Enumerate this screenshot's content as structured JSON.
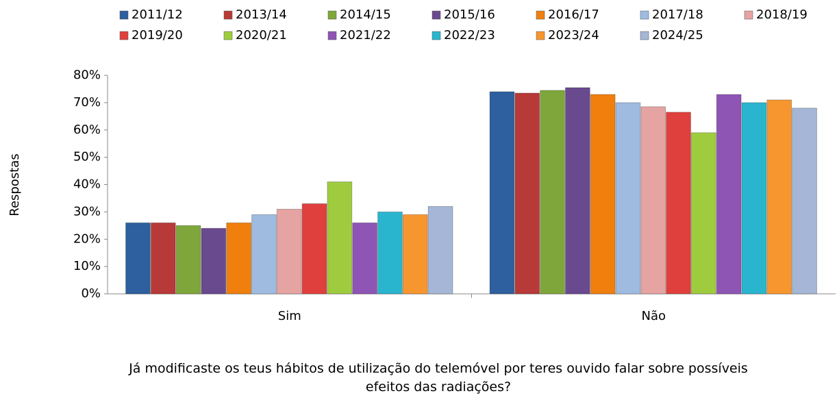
{
  "chart_data": {
    "type": "bar",
    "title": "Já modificaste os teus hábitos de utilização do telemóvel por teres ouvido falar sobre possíveis efeitos das radiações?",
    "y_label": "Respostas",
    "categories": [
      "Sim",
      "Não"
    ],
    "series": [
      {
        "name": "2011/12",
        "color": "#2e5f9e",
        "values": [
          26,
          74
        ]
      },
      {
        "name": "2013/14",
        "color": "#b83a38",
        "values": [
          26,
          73.5
        ]
      },
      {
        "name": "2014/15",
        "color": "#7fa63a",
        "values": [
          25,
          74.5
        ]
      },
      {
        "name": "2015/16",
        "color": "#6a4a8f",
        "values": [
          24,
          75.5
        ]
      },
      {
        "name": "2016/17",
        "color": "#f07f0e",
        "values": [
          26,
          73
        ]
      },
      {
        "name": "2017/18",
        "color": "#9fbbe0",
        "values": [
          29,
          70
        ]
      },
      {
        "name": "2018/19",
        "color": "#e5a3a2",
        "values": [
          31,
          68.5
        ]
      },
      {
        "name": "2019/20",
        "color": "#e0403d",
        "values": [
          33,
          66.5
        ]
      },
      {
        "name": "2020/21",
        "color": "#9fcc3f",
        "values": [
          41,
          59
        ]
      },
      {
        "name": "2021/22",
        "color": "#8e55b5",
        "values": [
          26,
          73
        ]
      },
      {
        "name": "2022/23",
        "color": "#2ab5cf",
        "values": [
          30,
          70
        ]
      },
      {
        "name": "2023/24",
        "color": "#f7962f",
        "values": [
          29,
          71
        ]
      },
      {
        "name": "2024/25",
        "color": "#a5b6d6",
        "values": [
          32,
          68
        ]
      }
    ],
    "ylim": [
      0,
      80
    ],
    "yticks": [
      {
        "value": 0,
        "label": "0%"
      },
      {
        "value": 10,
        "label": "10%"
      },
      {
        "value": 20,
        "label": "20%"
      },
      {
        "value": 30,
        "label": "30%"
      },
      {
        "value": 40,
        "label": "40%"
      },
      {
        "value": 50,
        "label": "50%"
      },
      {
        "value": 60,
        "label": "60%"
      },
      {
        "value": 70,
        "label": "70%"
      },
      {
        "value": 80,
        "label": "80%"
      }
    ],
    "grid": false,
    "legend": "top"
  }
}
